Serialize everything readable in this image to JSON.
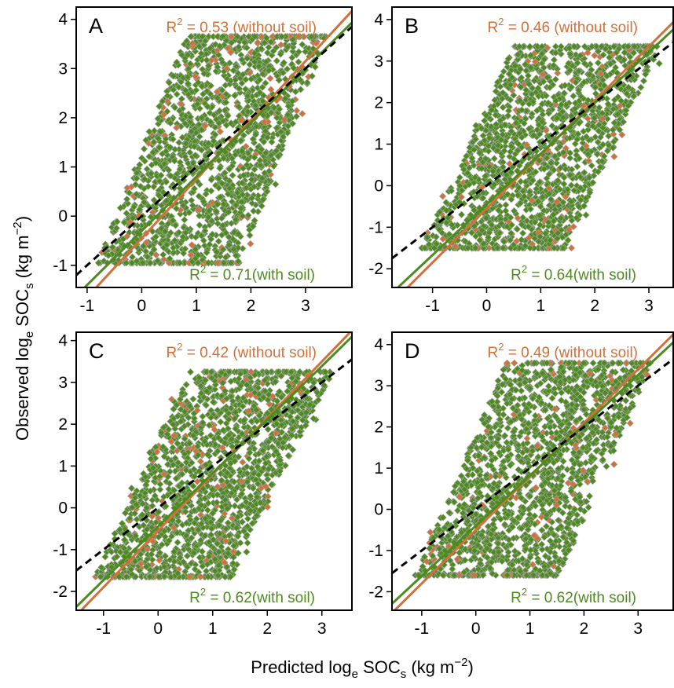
{
  "figure": {
    "y_axis_title": {
      "main": "Observed log",
      "sub": "e",
      "after": " SOC",
      "sub2": "s",
      "units": " (kg m",
      "sup": "−2",
      "close": ")"
    },
    "x_axis_title": {
      "main": "Predicted log",
      "sub": "e",
      "after": " SOC",
      "sub2": "s",
      "units": " (kg m",
      "sup": "−2",
      "close": ")"
    }
  },
  "colors": {
    "with_soil": "#4d8a1f",
    "without_soil": "#d0703a",
    "point_edge": "#a9a9a9",
    "one_to_one": "#000000"
  },
  "chart_data": [
    {
      "type": "scatter",
      "panel": "A",
      "xlim": [
        -1.2,
        3.85
      ],
      "ylim": [
        -1.45,
        4.25
      ],
      "xticks": [
        -1,
        0,
        1,
        2,
        3
      ],
      "yticks": [
        -1,
        0,
        1,
        2,
        3,
        4
      ],
      "x_tick_labels": [
        "-1",
        "0",
        "1",
        "2",
        "3"
      ],
      "y_tick_labels": [
        "-1",
        "0",
        "1",
        "2",
        "3",
        "4"
      ],
      "obs_range": [
        -0.95,
        3.65
      ],
      "cloud_left_edge": [
        [
          -0.8,
          -0.95
        ],
        [
          0.8,
          3.65
        ]
      ],
      "cloud_right_edge": [
        [
          1.8,
          -0.95
        ],
        [
          3.4,
          3.65
        ]
      ],
      "fit_without_soil": {
        "r2_prefix": "R",
        "r2_sup": "2",
        "r2_value": " = 0.53",
        "label": " (without soil)",
        "intercept": -0.45,
        "slope": 1.2
      },
      "fit_with_soil": {
        "r2_prefix": "R",
        "r2_sup": "2",
        "r2_value": " = 0.71",
        "label": "(with soil)",
        "intercept": -0.3,
        "slope": 1.1
      },
      "one_to_one": {
        "intercept": 0.0,
        "slope": 1.0
      }
    },
    {
      "type": "scatter",
      "panel": "B",
      "xlim": [
        -1.75,
        3.45
      ],
      "ylim": [
        -2.45,
        4.3
      ],
      "xticks": [
        -1,
        0,
        1,
        2,
        3
      ],
      "yticks": [
        -2,
        -1,
        0,
        1,
        2,
        3,
        4
      ],
      "x_tick_labels": [
        "-1",
        "0",
        "1",
        "2",
        "3"
      ],
      "y_tick_labels": [
        "-2",
        "-1",
        "0",
        "1",
        "2",
        "3",
        "4"
      ],
      "obs_range": [
        -1.5,
        3.35
      ],
      "cloud_left_edge": [
        [
          -1.2,
          -1.5
        ],
        [
          0.5,
          3.35
        ]
      ],
      "cloud_right_edge": [
        [
          1.5,
          -1.5
        ],
        [
          3.2,
          3.35
        ]
      ],
      "fit_without_soil": {
        "r2_prefix": "R",
        "r2_sup": "2",
        "r2_value": " = 0.46",
        "label": " (without soil)",
        "intercept": -0.55,
        "slope": 1.3
      },
      "fit_with_soil": {
        "r2_prefix": "R",
        "r2_sup": "2",
        "r2_value": " = 0.64",
        "label": "(with soil)",
        "intercept": -0.45,
        "slope": 1.22
      },
      "one_to_one": {
        "intercept": 0.0,
        "slope": 1.0
      }
    },
    {
      "type": "scatter",
      "panel": "C",
      "xlim": [
        -1.5,
        3.55
      ],
      "ylim": [
        -2.45,
        4.2
      ],
      "xticks": [
        -1,
        0,
        1,
        2,
        3
      ],
      "yticks": [
        -2,
        -1,
        0,
        1,
        2,
        3,
        4
      ],
      "x_tick_labels": [
        "-1",
        "0",
        "1",
        "2",
        "3"
      ],
      "y_tick_labels": [
        "-2",
        "-1",
        "0",
        "1",
        "2",
        "3",
        "4"
      ],
      "obs_range": [
        -1.65,
        3.25
      ],
      "cloud_left_edge": [
        [
          -1.15,
          -1.65
        ],
        [
          0.55,
          3.25
        ]
      ],
      "cloud_right_edge": [
        [
          1.35,
          -1.65
        ],
        [
          3.2,
          3.25
        ]
      ],
      "fit_without_soil": {
        "r2_prefix": "R",
        "r2_sup": "2",
        "r2_value": " = 0.42",
        "label": " (without soil)",
        "intercept": -0.55,
        "slope": 1.35
      },
      "fit_with_soil": {
        "r2_prefix": "R",
        "r2_sup": "2",
        "r2_value": " = 0.62",
        "label": "(with soil)",
        "intercept": -0.45,
        "slope": 1.28
      },
      "one_to_one": {
        "intercept": 0.0,
        "slope": 1.0
      }
    },
    {
      "type": "scatter",
      "panel": "D",
      "xlim": [
        -1.55,
        3.65
      ],
      "ylim": [
        -2.45,
        4.3
      ],
      "xticks": [
        -1,
        0,
        1,
        2,
        3
      ],
      "yticks": [
        -2,
        -1,
        0,
        1,
        2,
        3,
        4
      ],
      "x_tick_labels": [
        "-1",
        "0",
        "1",
        "2",
        "3"
      ],
      "y_tick_labels": [
        "-2",
        "-1",
        "0",
        "1",
        "2",
        "3",
        "4"
      ],
      "obs_range": [
        -1.6,
        3.55
      ],
      "cloud_left_edge": [
        [
          -1.1,
          -1.6
        ],
        [
          0.55,
          3.55
        ]
      ],
      "cloud_right_edge": [
        [
          1.55,
          -1.6
        ],
        [
          3.25,
          3.55
        ]
      ],
      "fit_without_soil": {
        "r2_prefix": "R",
        "r2_sup": "2",
        "r2_value": " = 0.49",
        "label": " (without soil)",
        "intercept": -0.5,
        "slope": 1.3
      },
      "fit_with_soil": {
        "r2_prefix": "R",
        "r2_sup": "2",
        "r2_value": " = 0.62",
        "label": "(with soil)",
        "intercept": -0.4,
        "slope": 1.22
      },
      "one_to_one": {
        "intercept": 0.0,
        "slope": 1.0
      }
    }
  ]
}
